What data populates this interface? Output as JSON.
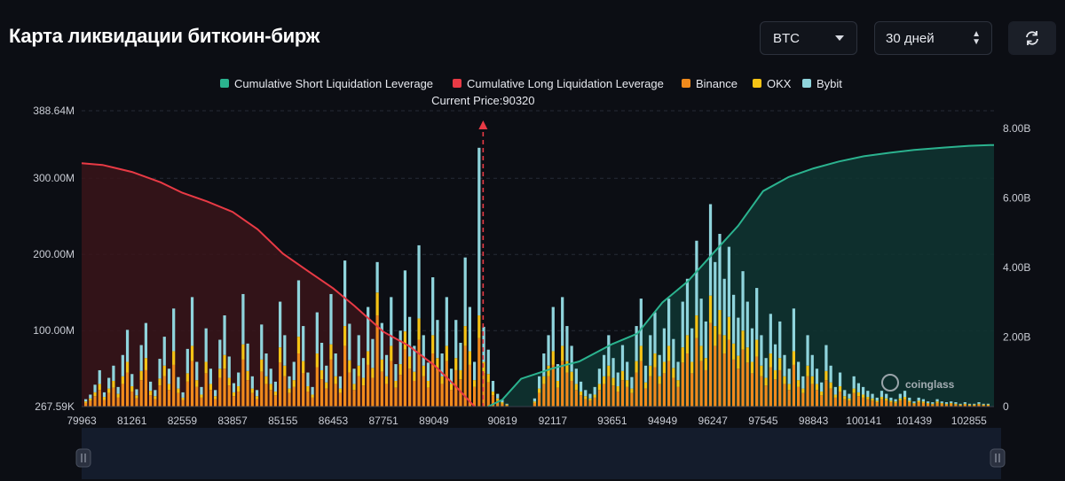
{
  "header": {
    "title": "Карта ликвидации биткоин-бирж",
    "coin_select": "BTC",
    "period_select": "30 дней"
  },
  "watermark": "coinglass",
  "colors": {
    "short": "#2bb38f",
    "long": "#e83a45",
    "binance": "#f08a1c",
    "okx": "#f5c315",
    "bybit": "#8fd4dc",
    "background": "#0c0e14"
  },
  "chart_data": {
    "type": "bar",
    "legend": [
      {
        "name": "Cumulative Short Liquidation Leverage",
        "color": "#2bb38f"
      },
      {
        "name": "Cumulative Long Liquidation Leverage",
        "color": "#e83a45"
      },
      {
        "name": "Binance",
        "color": "#f08a1c"
      },
      {
        "name": "OKX",
        "color": "#f5c315"
      },
      {
        "name": "Bybit",
        "color": "#8fd4dc"
      }
    ],
    "current_price_label": "Current Price:90320",
    "current_price": 90320,
    "x_range": [
      79963,
      103500
    ],
    "x_ticks": [
      "79963",
      "81261",
      "82559",
      "83857",
      "85155",
      "86453",
      "87751",
      "89049",
      "90819",
      "92117",
      "93651",
      "94949",
      "96247",
      "97545",
      "98843",
      "100141",
      "101439",
      "102855"
    ],
    "x_tick_values": [
      79963,
      81261,
      82559,
      83857,
      85155,
      86453,
      87751,
      89049,
      90819,
      92117,
      93651,
      94949,
      96247,
      97545,
      98843,
      100141,
      101439,
      102855
    ],
    "y_left_ticks": [
      "267.59K",
      "100.00M",
      "200.00M",
      "300.00M",
      "388.64M"
    ],
    "y_left_tick_values": [
      0.26759,
      100,
      200,
      300,
      388.64
    ],
    "y_left_range": [
      0.26759,
      388.64
    ],
    "y_right_ticks": [
      "0",
      "2.00B",
      "4.00B",
      "6.00B",
      "8.00B"
    ],
    "y_right_tick_values": [
      0,
      2,
      4,
      6,
      8
    ],
    "y_right_range": [
      0,
      8
    ],
    "cumulative_long": {
      "unit": "B",
      "points": [
        [
          79963,
          7.0
        ],
        [
          80500,
          6.95
        ],
        [
          81261,
          6.75
        ],
        [
          82000,
          6.45
        ],
        [
          82559,
          6.15
        ],
        [
          83200,
          5.9
        ],
        [
          83857,
          5.6
        ],
        [
          84500,
          5.1
        ],
        [
          85155,
          4.4
        ],
        [
          85800,
          3.9
        ],
        [
          86453,
          3.4
        ],
        [
          87000,
          2.9
        ],
        [
          87751,
          2.15
        ],
        [
          88400,
          1.75
        ],
        [
          89049,
          1.2
        ],
        [
          89600,
          0.6
        ],
        [
          90100,
          0.0
        ]
      ]
    },
    "cumulative_short": {
      "unit": "B",
      "points": [
        [
          90450,
          0.0
        ],
        [
          90819,
          0.2
        ],
        [
          91300,
          0.8
        ],
        [
          92117,
          1.1
        ],
        [
          92800,
          1.3
        ],
        [
          93651,
          1.8
        ],
        [
          94300,
          2.1
        ],
        [
          94949,
          3.0
        ],
        [
          95600,
          3.6
        ],
        [
          96247,
          4.4
        ],
        [
          96900,
          5.2
        ],
        [
          97545,
          6.2
        ],
        [
          98200,
          6.6
        ],
        [
          98843,
          6.85
        ],
        [
          99500,
          7.05
        ],
        [
          100141,
          7.2
        ],
        [
          100800,
          7.3
        ],
        [
          101439,
          7.38
        ],
        [
          102200,
          7.45
        ],
        [
          102855,
          7.5
        ],
        [
          103400,
          7.52
        ]
      ]
    },
    "series": [
      {
        "name": "Binance",
        "values": [
          5,
          8,
          14,
          22,
          9,
          18,
          25,
          12,
          30,
          45,
          20,
          11,
          35,
          48,
          15,
          10,
          28,
          40,
          22,
          55,
          18,
          9,
          33,
          60,
          26,
          12,
          44,
          22,
          10,
          38,
          50,
          28,
          14,
          20,
          62,
          35,
          18,
          10,
          46,
          30,
          22,
          15,
          58,
          40,
          18,
          26,
          70,
          44,
          20,
          12,
          52,
          36,
          24,
          62,
          30,
          18,
          80,
          45,
          22,
          40,
          28,
          55,
          38,
          120,
          46,
          30,
          60,
          25,
          42,
          75,
          50,
          34,
          88,
          40,
          25,
          70,
          48,
          30,
          60,
          22,
          48,
          36,
          80,
          55,
          26,
          90,
          44,
          32,
          15,
          8,
          4,
          2,
          0,
          0,
          0,
          0,
          0,
          5,
          18,
          30,
          40,
          55,
          25,
          60,
          45,
          34,
          22,
          15,
          10,
          8,
          12,
          22,
          30,
          40,
          28,
          20,
          35,
          26,
          18,
          45,
          60,
          24,
          40,
          52,
          30,
          44,
          60,
          38,
          26,
          58,
          70,
          44,
          90,
          60,
          48,
          110,
          80,
          95,
          70,
          88,
          62,
          50,
          75,
          58,
          44,
          66,
          40,
          28,
          52,
          36,
          48,
          30,
          22,
          55,
          26,
          18,
          40,
          30,
          22,
          15,
          35,
          24,
          12,
          20,
          10,
          8,
          18,
          14,
          12,
          10,
          8,
          6,
          10,
          8,
          6,
          5,
          8,
          10,
          6,
          4,
          6,
          5,
          4,
          3,
          5,
          4,
          3,
          4,
          3,
          2,
          3,
          2,
          2,
          3,
          2,
          2
        ],
        "description_note": ""
      },
      {
        "name": "OKX",
        "values": [
          2,
          3,
          5,
          8,
          4,
          6,
          9,
          5,
          10,
          14,
          7,
          4,
          12,
          16,
          6,
          4,
          9,
          14,
          8,
          18,
          6,
          3,
          11,
          20,
          9,
          4,
          15,
          8,
          4,
          12,
          18,
          10,
          5,
          7,
          20,
          12,
          6,
          4,
          16,
          10,
          8,
          5,
          20,
          14,
          6,
          9,
          22,
          16,
          7,
          4,
          18,
          12,
          8,
          20,
          10,
          6,
          26,
          16,
          8,
          14,
          10,
          18,
          13,
          30,
          16,
          10,
          20,
          9,
          14,
          24,
          16,
          12,
          28,
          14,
          9,
          24,
          16,
          10,
          20,
          8,
          16,
          12,
          26,
          18,
          9,
          30,
          15,
          11,
          5,
          3,
          2,
          1,
          0,
          0,
          0,
          0,
          0,
          2,
          6,
          10,
          14,
          18,
          9,
          20,
          15,
          12,
          8,
          5,
          4,
          3,
          4,
          8,
          10,
          14,
          10,
          7,
          12,
          9,
          6,
          15,
          20,
          8,
          14,
          18,
          10,
          15,
          20,
          13,
          9,
          20,
          24,
          15,
          30,
          20,
          16,
          36,
          26,
          32,
          24,
          30,
          21,
          17,
          25,
          20,
          15,
          22,
          14,
          10,
          18,
          12,
          16,
          10,
          8,
          18,
          9,
          6,
          14,
          10,
          8,
          5,
          12,
          8,
          4,
          7,
          4,
          3,
          6,
          5,
          4,
          3,
          3,
          2,
          3,
          3,
          2,
          2,
          3,
          3,
          2,
          1,
          2,
          2,
          1,
          1,
          2,
          1,
          1,
          1,
          1,
          1,
          1,
          1,
          1,
          1,
          1,
          1
        ]
      },
      {
        "name": "Bybit",
        "values": [
          3,
          5,
          10,
          18,
          6,
          14,
          20,
          9,
          28,
          42,
          16,
          8,
          34,
          46,
          12,
          8,
          26,
          38,
          20,
          56,
          15,
          7,
          32,
          64,
          24,
          10,
          44,
          20,
          8,
          38,
          52,
          28,
          12,
          18,
          66,
          36,
          16,
          8,
          46,
          30,
          20,
          13,
          60,
          40,
          16,
          24,
          74,
          46,
          18,
          10,
          54,
          36,
          22,
          66,
          30,
          16,
          86,
          48,
          20,
          40,
          26,
          58,
          38,
          40,
          48,
          28,
          64,
          22,
          44,
          80,
          52,
          34,
          96,
          40,
          24,
          76,
          50,
          30,
          64,
          20,
          50,
          36,
          90,
          58,
          24,
          220,
          46,
          32,
          14,
          6,
          3,
          1,
          0,
          0,
          0,
          0,
          0,
          4,
          16,
          30,
          40,
          58,
          22,
          64,
          46,
          34,
          20,
          13,
          8,
          6,
          10,
          20,
          28,
          40,
          26,
          18,
          34,
          24,
          15,
          46,
          62,
          22,
          40,
          54,
          28,
          44,
          62,
          38,
          24,
          60,
          74,
          44,
          98,
          62,
          48,
          120,
          84,
          100,
          74,
          92,
          64,
          50,
          78,
          60,
          44,
          68,
          40,
          26,
          52,
          34,
          48,
          28,
          20,
          56,
          24,
          16,
          40,
          28,
          20,
          12,
          34,
          22,
          10,
          18,
          8,
          6,
          16,
          12,
          10,
          8,
          6,
          4,
          8,
          6,
          4,
          3,
          6,
          8,
          4,
          2,
          4,
          3,
          2,
          2,
          3,
          2,
          2,
          2,
          2,
          1,
          2,
          1,
          1,
          2,
          1,
          1
        ]
      }
    ],
    "grid": true
  }
}
